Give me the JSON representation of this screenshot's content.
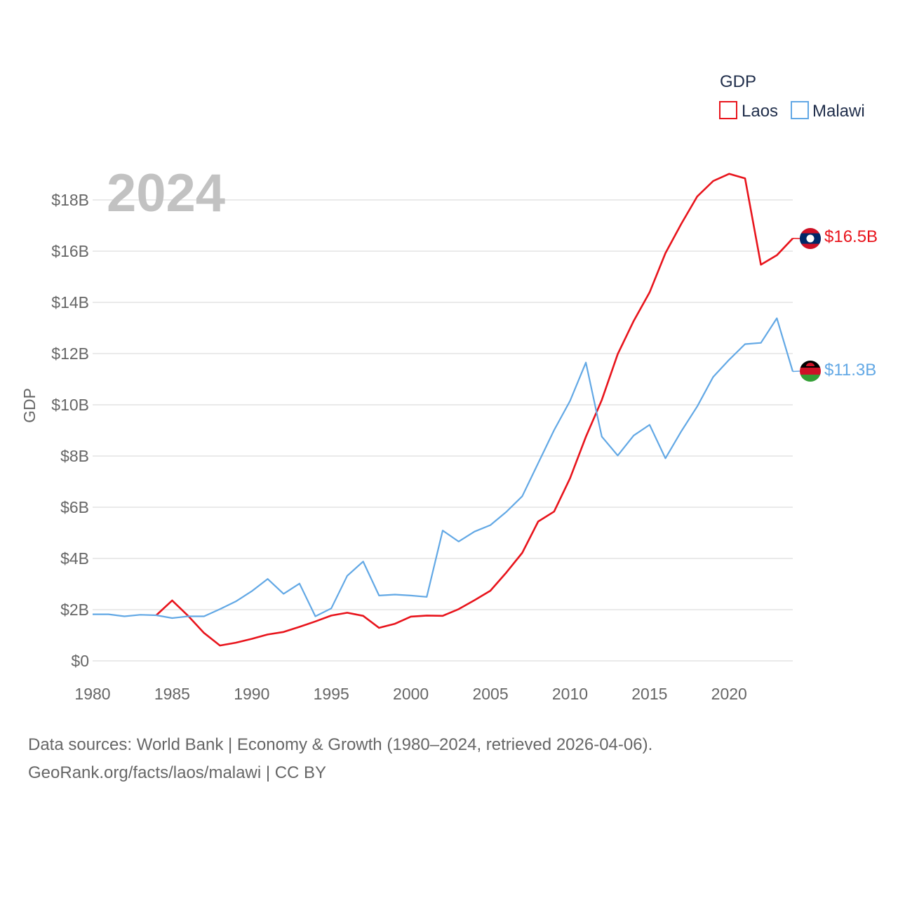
{
  "chart_data": {
    "type": "line",
    "title": "2024",
    "ylabel": "GDP",
    "xlabel": "",
    "xlim": [
      1980,
      2024
    ],
    "ylim": [
      0,
      19
    ],
    "x_ticks": [
      1980,
      1985,
      1990,
      1995,
      2000,
      2005,
      2010,
      2015,
      2020
    ],
    "y_ticks": [
      {
        "value": 0,
        "label": "$0"
      },
      {
        "value": 2,
        "label": "$2B"
      },
      {
        "value": 4,
        "label": "$4B"
      },
      {
        "value": 6,
        "label": "$6B"
      },
      {
        "value": 8,
        "label": "$8B"
      },
      {
        "value": 10,
        "label": "$10B"
      },
      {
        "value": 12,
        "label": "$12B"
      },
      {
        "value": 14,
        "label": "$14B"
      },
      {
        "value": 16,
        "label": "$16B"
      },
      {
        "value": 18,
        "label": "$18B"
      }
    ],
    "legend": {
      "title": "GDP",
      "position": "top-right"
    },
    "series": [
      {
        "name": "Laos",
        "color": "#e8141c",
        "end_label": "$16.5B",
        "flag": "laos-flag",
        "x": [
          1984,
          1985,
          1986,
          1987,
          1988,
          1989,
          1990,
          1991,
          1992,
          1993,
          1994,
          1995,
          1996,
          1997,
          1998,
          1999,
          2000,
          2001,
          2002,
          2003,
          2004,
          2005,
          2006,
          2007,
          2008,
          2009,
          2010,
          2011,
          2012,
          2013,
          2014,
          2015,
          2016,
          2017,
          2018,
          2019,
          2020,
          2021,
          2022,
          2023,
          2024
        ],
        "values": [
          1.78,
          2.36,
          1.76,
          1.09,
          0.6,
          0.71,
          0.86,
          1.03,
          1.13,
          1.33,
          1.54,
          1.77,
          1.88,
          1.76,
          1.29,
          1.45,
          1.73,
          1.77,
          1.76,
          2.02,
          2.37,
          2.74,
          3.45,
          4.22,
          5.44,
          5.83,
          7.13,
          8.75,
          10.19,
          11.98,
          13.27,
          14.39,
          15.92,
          17.07,
          18.14,
          18.74,
          19.02,
          18.84,
          15.47,
          15.84,
          16.5
        ]
      },
      {
        "name": "Malawi",
        "color": "#62a8e5",
        "end_label": "$11.3B",
        "flag": "malawi-flag",
        "x": [
          1980,
          1981,
          1982,
          1983,
          1984,
          1985,
          1986,
          1987,
          1988,
          1989,
          1990,
          1991,
          1992,
          1993,
          1994,
          1995,
          1996,
          1997,
          1998,
          1999,
          2000,
          2001,
          2002,
          2003,
          2004,
          2005,
          2006,
          2007,
          2008,
          2009,
          2010,
          2011,
          2012,
          2013,
          2014,
          2015,
          2016,
          2017,
          2018,
          2019,
          2020,
          2021,
          2022,
          2023,
          2024
        ],
        "values": [
          1.82,
          1.82,
          1.74,
          1.8,
          1.78,
          1.67,
          1.74,
          1.74,
          2.02,
          2.32,
          2.72,
          3.2,
          2.62,
          3.02,
          1.74,
          2.05,
          3.32,
          3.88,
          2.55,
          2.59,
          2.55,
          2.5,
          5.09,
          4.66,
          5.05,
          5.3,
          5.82,
          6.43,
          7.72,
          9.01,
          10.15,
          11.65,
          8.76,
          8.02,
          8.8,
          9.22,
          7.91,
          8.97,
          9.94,
          11.09,
          11.76,
          12.37,
          12.42,
          13.38,
          11.3
        ]
      }
    ]
  },
  "footer": {
    "line1": "Data sources: World Bank | Economy & Growth (1980–2024, retrieved 2026-04-06).",
    "line2": "GeoRank.org/facts/laos/malawi | CC BY"
  }
}
